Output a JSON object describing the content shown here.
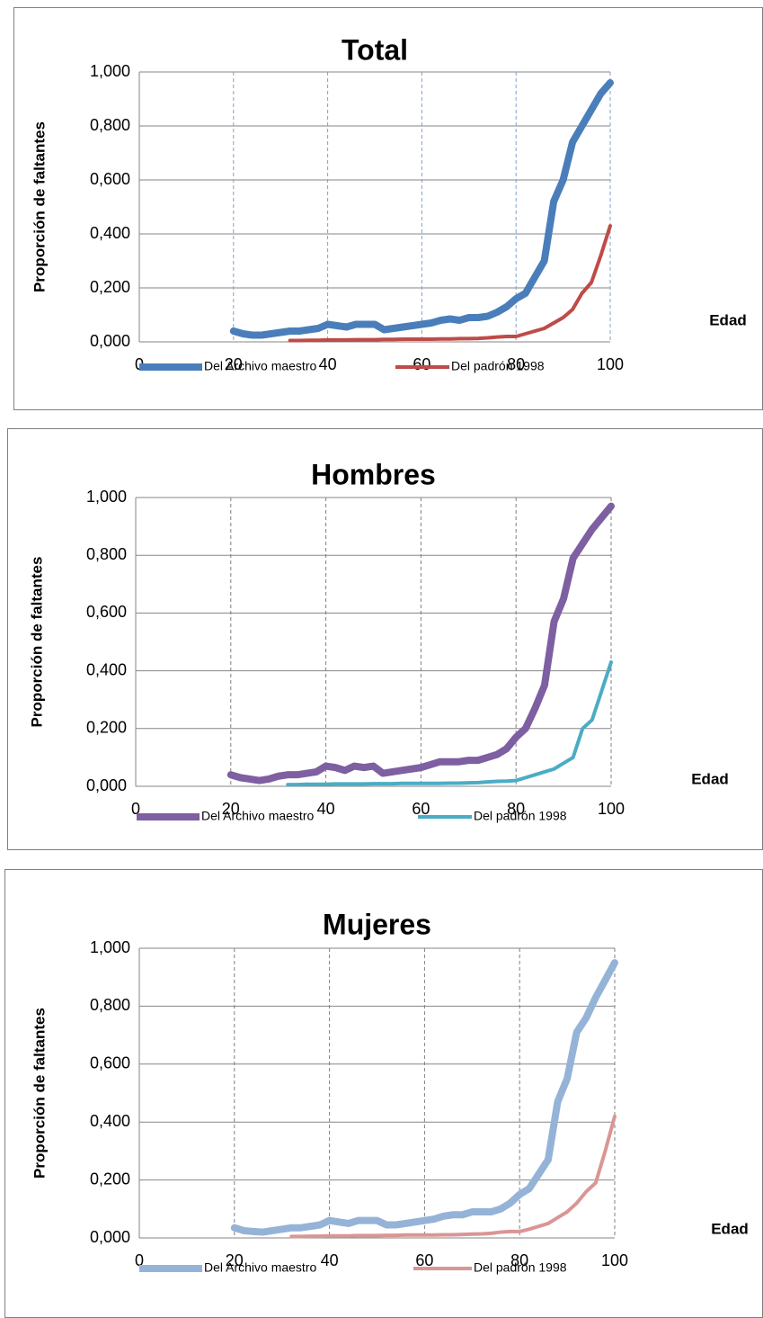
{
  "chart_data": [
    {
      "type": "line",
      "title": "Total",
      "y_label": "Proporción de faltantes",
      "x_label": "Edad",
      "x": [
        20,
        22,
        24,
        26,
        28,
        30,
        32,
        34,
        36,
        38,
        40,
        42,
        44,
        46,
        48,
        50,
        52,
        54,
        56,
        58,
        60,
        62,
        64,
        66,
        68,
        70,
        72,
        74,
        76,
        78,
        80,
        82,
        84,
        86,
        88,
        90,
        92,
        94,
        96,
        98,
        100
      ],
      "series": [
        {
          "name": "Del Archivo maestro",
          "color": "#4a7ebb",
          "values": [
            0.04,
            0.03,
            0.025,
            0.025,
            0.03,
            0.035,
            0.04,
            0.04,
            0.045,
            0.05,
            0.065,
            0.06,
            0.055,
            0.065,
            0.065,
            0.065,
            0.045,
            0.05,
            0.055,
            0.06,
            0.065,
            0.07,
            0.08,
            0.085,
            0.08,
            0.09,
            0.09,
            0.095,
            0.11,
            0.13,
            0.16,
            0.18,
            0.24,
            0.3,
            0.52,
            0.6,
            0.74,
            0.8,
            0.86,
            0.92,
            0.96
          ]
        },
        {
          "name": "Del padrón 1998",
          "color": "#be4b48",
          "values": [
            null,
            null,
            null,
            null,
            null,
            null,
            0.005,
            0.005,
            0.006,
            0.006,
            0.007,
            0.007,
            0.007,
            0.008,
            0.008,
            0.008,
            0.009,
            0.009,
            0.01,
            0.01,
            0.01,
            0.01,
            0.011,
            0.011,
            0.012,
            0.012,
            0.013,
            0.015,
            0.018,
            0.02,
            0.02,
            0.03,
            0.04,
            0.05,
            0.07,
            0.09,
            0.12,
            0.18,
            0.22,
            0.32,
            0.43
          ]
        }
      ],
      "xlim": [
        0,
        100
      ],
      "xticks": [
        0,
        20,
        40,
        60,
        80,
        100
      ],
      "ylim": [
        0,
        1
      ],
      "yticks": [
        {
          "value": 0,
          "label": "0,000"
        },
        {
          "value": 0.2,
          "label": "0,200"
        },
        {
          "value": 0.4,
          "label": "0,400"
        },
        {
          "value": 0.6,
          "label": "0,600"
        },
        {
          "value": 0.8,
          "label": "0,800"
        },
        {
          "value": 1,
          "label": "1,000"
        }
      ],
      "grid": true,
      "xgrid_color": "#7f9fd0",
      "legend": "bottom"
    },
    {
      "type": "line",
      "title": "Hombres",
      "y_label": "Proporción de faltantes",
      "x_label": "Edad",
      "x": [
        20,
        22,
        24,
        26,
        28,
        30,
        32,
        34,
        36,
        38,
        40,
        42,
        44,
        46,
        48,
        50,
        52,
        54,
        56,
        58,
        60,
        62,
        64,
        66,
        68,
        70,
        72,
        74,
        76,
        78,
        80,
        82,
        84,
        86,
        88,
        90,
        92,
        94,
        96,
        98,
        100
      ],
      "series": [
        {
          "name": "Del Archivo maestro",
          "color": "#7e5fa1",
          "values": [
            0.04,
            0.03,
            0.025,
            0.02,
            0.025,
            0.035,
            0.04,
            0.04,
            0.045,
            0.05,
            0.07,
            0.065,
            0.055,
            0.07,
            0.065,
            0.07,
            0.045,
            0.05,
            0.055,
            0.06,
            0.065,
            0.075,
            0.085,
            0.085,
            0.085,
            0.09,
            0.09,
            0.1,
            0.11,
            0.13,
            0.17,
            0.2,
            0.27,
            0.35,
            0.57,
            0.65,
            0.79,
            0.84,
            0.89,
            0.93,
            0.97
          ]
        },
        {
          "name": "Del padrón 1998",
          "color": "#4bacc6",
          "values": [
            null,
            null,
            null,
            null,
            null,
            null,
            0.006,
            0.006,
            0.007,
            0.007,
            0.007,
            0.008,
            0.008,
            0.008,
            0.008,
            0.009,
            0.009,
            0.009,
            0.01,
            0.01,
            0.01,
            0.01,
            0.01,
            0.011,
            0.011,
            0.012,
            0.013,
            0.015,
            0.017,
            0.018,
            0.02,
            0.03,
            0.04,
            0.05,
            0.06,
            0.08,
            0.1,
            0.2,
            0.23,
            0.33,
            0.43
          ]
        }
      ],
      "xlim": [
        0,
        100
      ],
      "xticks": [
        0,
        20,
        40,
        60,
        80,
        100
      ],
      "ylim": [
        0,
        1
      ],
      "yticks": [
        {
          "value": 0,
          "label": "0,000"
        },
        {
          "value": 0.2,
          "label": "0,200"
        },
        {
          "value": 0.4,
          "label": "0,400"
        },
        {
          "value": 0.6,
          "label": "0,600"
        },
        {
          "value": 0.8,
          "label": "0,800"
        },
        {
          "value": 1,
          "label": "1,000"
        }
      ],
      "grid": true,
      "xgrid_color": "#7f7f7f",
      "legend": "bottom"
    },
    {
      "type": "line",
      "title": "Mujeres",
      "y_label": "Proporción de faltantes",
      "x_label": "Edad",
      "x": [
        20,
        22,
        24,
        26,
        28,
        30,
        32,
        34,
        36,
        38,
        40,
        42,
        44,
        46,
        48,
        50,
        52,
        54,
        56,
        58,
        60,
        62,
        64,
        66,
        68,
        70,
        72,
        74,
        76,
        78,
        80,
        82,
        84,
        86,
        88,
        90,
        92,
        94,
        96,
        98,
        100
      ],
      "series": [
        {
          "name": "Del Archivo maestro",
          "color": "#95b3d7",
          "values": [
            0.035,
            0.025,
            0.022,
            0.02,
            0.025,
            0.03,
            0.035,
            0.035,
            0.04,
            0.045,
            0.06,
            0.055,
            0.05,
            0.06,
            0.06,
            0.06,
            0.045,
            0.045,
            0.05,
            0.055,
            0.06,
            0.065,
            0.075,
            0.08,
            0.08,
            0.09,
            0.09,
            0.09,
            0.1,
            0.12,
            0.15,
            0.17,
            0.22,
            0.27,
            0.47,
            0.55,
            0.71,
            0.76,
            0.83,
            0.89,
            0.95
          ]
        },
        {
          "name": "Del padrón 1998",
          "color": "#d99694",
          "values": [
            null,
            null,
            null,
            null,
            null,
            null,
            0.005,
            0.005,
            0.006,
            0.006,
            0.007,
            0.007,
            0.007,
            0.008,
            0.008,
            0.008,
            0.009,
            0.009,
            0.01,
            0.01,
            0.01,
            0.01,
            0.011,
            0.011,
            0.012,
            0.013,
            0.014,
            0.016,
            0.02,
            0.022,
            0.022,
            0.03,
            0.04,
            0.05,
            0.07,
            0.09,
            0.12,
            0.16,
            0.19,
            0.3,
            0.42
          ]
        }
      ],
      "xlim": [
        0,
        100
      ],
      "xticks": [
        0,
        20,
        40,
        60,
        80,
        100
      ],
      "ylim": [
        0,
        1
      ],
      "yticks": [
        {
          "value": 0,
          "label": "0,000"
        },
        {
          "value": 0.2,
          "label": "0,200"
        },
        {
          "value": 0.4,
          "label": "0,400"
        },
        {
          "value": 0.6,
          "label": "0,600"
        },
        {
          "value": 0.8,
          "label": "0,800"
        },
        {
          "value": 1,
          "label": "1,000"
        }
      ],
      "grid": true,
      "xgrid_color": "#7f7f7f",
      "legend": "bottom"
    }
  ]
}
